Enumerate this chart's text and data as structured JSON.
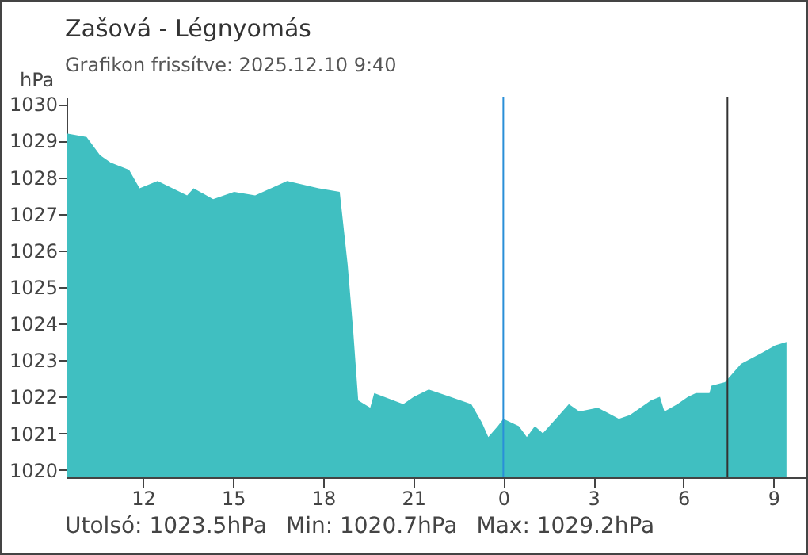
{
  "chart_data": {
    "type": "area",
    "title": "Zašová - Légnyomás",
    "subtitle": "Grafikon frissítve: 2025.12.10 9:40",
    "ylabel": "hPa",
    "x": [
      "2025-12-09T09:27",
      "2025-12-09T10:07",
      "2025-12-09T10:34",
      "2025-12-09T10:55",
      "2025-12-09T11:32",
      "2025-12-09T11:53",
      "2025-12-09T12:29",
      "2025-12-09T13:28",
      "2025-12-09T13:41",
      "2025-12-09T14:20",
      "2025-12-09T15:02",
      "2025-12-09T15:44",
      "2025-12-09T16:48",
      "2025-12-09T17:51",
      "2025-12-09T18:33",
      "2025-12-09T18:49",
      "2025-12-09T19:00",
      "2025-12-09T19:10",
      "2025-12-09T19:34",
      "2025-12-09T19:42",
      "2025-12-09T20:40",
      "2025-12-09T21:01",
      "2025-12-09T21:31",
      "2025-12-09T22:14",
      "2025-12-09T22:56",
      "2025-12-09T23:17",
      "2025-12-09T23:30",
      "2025-12-09T23:49",
      "2025-12-10T00:00",
      "2025-12-10T00:31",
      "2025-12-10T00:47",
      "2025-12-10T01:03",
      "2025-12-10T01:19",
      "2025-12-10T01:45",
      "2025-12-10T02:11",
      "2025-12-10T02:32",
      "2025-12-10T03:09",
      "2025-12-10T03:51",
      "2025-12-10T04:13",
      "2025-12-10T04:34",
      "2025-12-10T04:55",
      "2025-12-10T05:13",
      "2025-12-10T05:22",
      "2025-12-10T05:48",
      "2025-12-10T06:09",
      "2025-12-10T06:25",
      "2025-12-10T06:52",
      "2025-12-10T06:56",
      "2025-12-10T07:23",
      "2025-12-10T07:55",
      "2025-12-10T08:37",
      "2025-12-10T09:03",
      "2025-12-10T09:26"
    ],
    "series": [
      {
        "color": "#40bfc1",
        "values": [
          1029.2,
          1029.1,
          1028.6,
          1028.4,
          1028.2,
          1027.7,
          1027.9,
          1027.5,
          1027.7,
          1027.4,
          1027.6,
          1027.5,
          1027.9,
          1027.7,
          1027.6,
          1025.6,
          1023.8,
          1021.9,
          1021.7,
          1022.1,
          1021.8,
          1022.0,
          1022.2,
          1022.0,
          1021.8,
          1021.3,
          1020.9,
          1021.2,
          1021.4,
          1021.2,
          1020.9,
          1021.2,
          1021.0,
          1021.4,
          1021.8,
          1021.6,
          1021.7,
          1021.4,
          1021.5,
          1021.7,
          1021.9,
          1022.0,
          1021.6,
          1021.8,
          1022.0,
          1022.1,
          1022.1,
          1022.3,
          1022.4,
          1022.9,
          1023.2,
          1023.4,
          1023.5
        ]
      }
    ],
    "xlim": [
      "2025-12-09T09:27",
      "2025-12-10T10:09"
    ],
    "xticks": [
      {
        "value": "2025-12-09T12:00",
        "label": "12"
      },
      {
        "value": "2025-12-09T15:00",
        "label": "15"
      },
      {
        "value": "2025-12-09T18:00",
        "label": "18"
      },
      {
        "value": "2025-12-09T21:00",
        "label": "21"
      },
      {
        "value": "2025-12-10T00:00",
        "label": "0"
      },
      {
        "value": "2025-12-10T03:00",
        "label": "3"
      },
      {
        "value": "2025-12-10T06:00",
        "label": "6"
      },
      {
        "value": "2025-12-10T09:00",
        "label": "9"
      }
    ],
    "ylim": [
      1019.8,
      1030.2
    ],
    "yticks": [
      1020,
      1021,
      1022,
      1023,
      1024,
      1025,
      1026,
      1027,
      1028,
      1029,
      1030
    ],
    "ref_lines": [
      {
        "axis": "x",
        "value": "2025-12-10T00:00",
        "color": "#2a8fd8"
      },
      {
        "axis": "x",
        "value": "2025-12-10T07:28",
        "color": "#333333"
      }
    ],
    "annotations": [
      "Utolsó: 1023.5hPa",
      "Min: 1020.7hPa",
      "Max: 1029.2hPa"
    ]
  }
}
